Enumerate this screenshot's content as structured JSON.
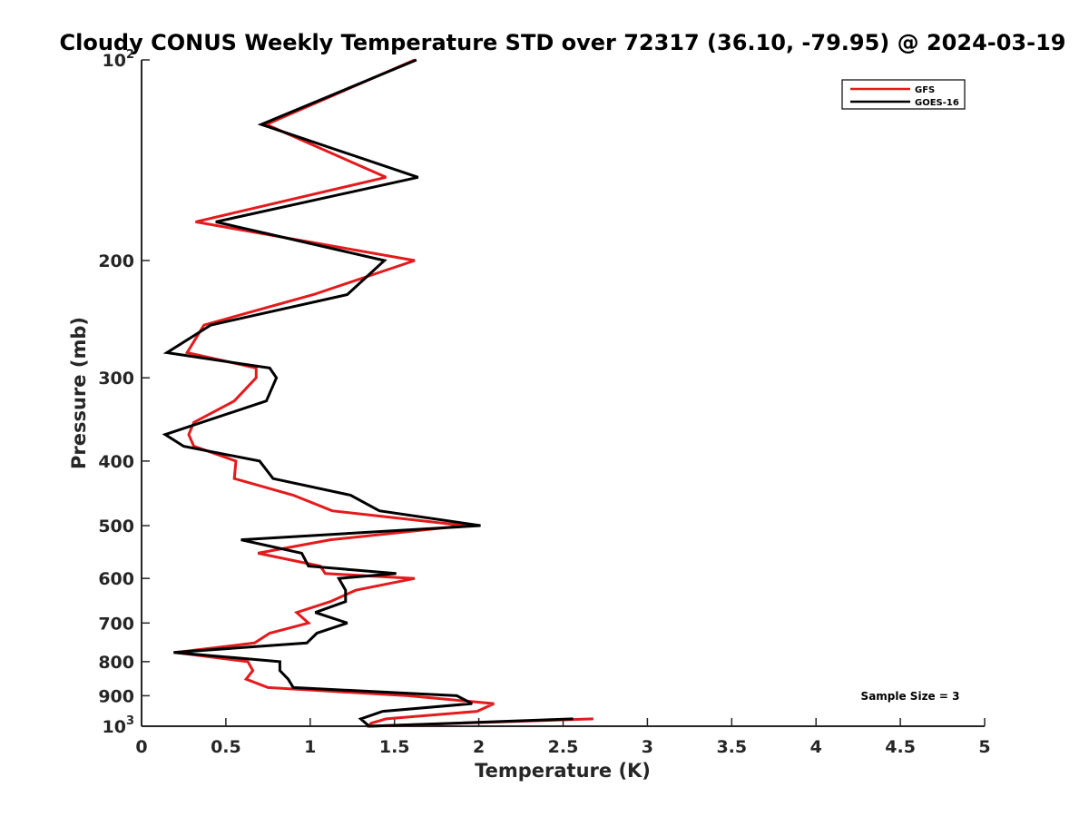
{
  "chart_data": {
    "type": "line",
    "title": "Cloudy CONUS Weekly Temperature STD over 72317 (36.10, -79.95) @ 2024-03-19",
    "xlabel": "Temperature (K)",
    "ylabel": "Pressure (mb)",
    "xlim": [
      0,
      5
    ],
    "ylim": [
      100,
      1000
    ],
    "y_scale": "log",
    "y_reversed": true,
    "grid": false,
    "legend_position": "top-right",
    "x_ticks": [
      "0",
      "0.5",
      "1",
      "1.5",
      "2",
      "2.5",
      "3",
      "3.5",
      "4",
      "4.5",
      "5"
    ],
    "y_ticks": [
      {
        "value": 100,
        "base": "10",
        "exp": "2"
      },
      {
        "value": 200,
        "label": "200"
      },
      {
        "value": 300,
        "label": "300"
      },
      {
        "value": 400,
        "label": "400"
      },
      {
        "value": 500,
        "label": "500"
      },
      {
        "value": 600,
        "label": "600"
      },
      {
        "value": 700,
        "label": "700"
      },
      {
        "value": 800,
        "label": "800"
      },
      {
        "value": 900,
        "label": "900"
      },
      {
        "value": 1000,
        "base": "10",
        "exp": "3"
      }
    ],
    "annotation": "Sample Size = 3",
    "series": [
      {
        "name": "GFS",
        "color": "#e41a1c",
        "points": [
          [
            1.62,
            100
          ],
          [
            0.74,
            125
          ],
          [
            1.45,
            150
          ],
          [
            0.32,
            175
          ],
          [
            1.62,
            200
          ],
          [
            1.02,
            225
          ],
          [
            0.37,
            250
          ],
          [
            0.27,
            275
          ],
          [
            0.68,
            290
          ],
          [
            0.68,
            300
          ],
          [
            0.55,
            325
          ],
          [
            0.31,
            350
          ],
          [
            0.28,
            365
          ],
          [
            0.31,
            380
          ],
          [
            0.56,
            400
          ],
          [
            0.55,
            425
          ],
          [
            0.9,
            450
          ],
          [
            1.13,
            475
          ],
          [
            1.92,
            500
          ],
          [
            1.12,
            525
          ],
          [
            0.69,
            550
          ],
          [
            1.06,
            575
          ],
          [
            1.09,
            590
          ],
          [
            1.62,
            600
          ],
          [
            1.27,
            625
          ],
          [
            1.12,
            650
          ],
          [
            0.92,
            675
          ],
          [
            0.99,
            700
          ],
          [
            0.76,
            725
          ],
          [
            0.67,
            750
          ],
          [
            0.2,
            775
          ],
          [
            0.63,
            800
          ],
          [
            0.66,
            825
          ],
          [
            0.62,
            850
          ],
          [
            0.75,
            875
          ],
          [
            1.58,
            900
          ],
          [
            2.09,
            925
          ],
          [
            1.99,
            950
          ],
          [
            1.45,
            975
          ],
          [
            1.36,
            990
          ],
          [
            1.35,
            1000
          ],
          [
            2.68,
            975
          ]
        ]
      },
      {
        "name": "GOES-16",
        "color": "#000000",
        "points": [
          [
            1.63,
            100
          ],
          [
            0.71,
            125
          ],
          [
            1.64,
            150
          ],
          [
            0.44,
            175
          ],
          [
            1.44,
            200
          ],
          [
            1.22,
            225
          ],
          [
            0.41,
            250
          ],
          [
            0.15,
            275
          ],
          [
            0.76,
            290
          ],
          [
            0.8,
            300
          ],
          [
            0.74,
            325
          ],
          [
            0.14,
            365
          ],
          [
            0.25,
            380
          ],
          [
            0.7,
            400
          ],
          [
            0.78,
            425
          ],
          [
            1.24,
            450
          ],
          [
            1.41,
            475
          ],
          [
            2.01,
            500
          ],
          [
            0.59,
            525
          ],
          [
            0.95,
            550
          ],
          [
            0.99,
            575
          ],
          [
            1.51,
            590
          ],
          [
            1.17,
            600
          ],
          [
            1.21,
            625
          ],
          [
            1.21,
            650
          ],
          [
            1.03,
            675
          ],
          [
            1.22,
            700
          ],
          [
            1.04,
            725
          ],
          [
            0.98,
            750
          ],
          [
            0.19,
            775
          ],
          [
            0.82,
            800
          ],
          [
            0.82,
            825
          ],
          [
            0.87,
            850
          ],
          [
            0.9,
            875
          ],
          [
            1.87,
            900
          ],
          [
            1.96,
            925
          ],
          [
            1.43,
            950
          ],
          [
            1.3,
            975
          ],
          [
            1.35,
            1000
          ],
          [
            2.56,
            975
          ]
        ]
      }
    ]
  }
}
